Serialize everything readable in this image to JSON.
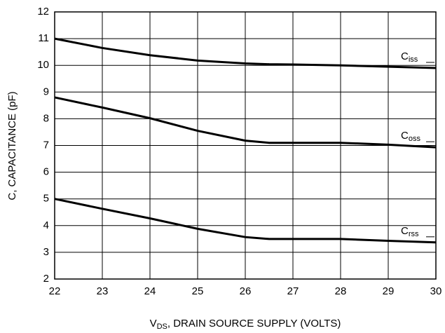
{
  "chart_data": {
    "type": "line",
    "y_label": "C, CAPACITANCE (pF)",
    "x_label": {
      "text": "V",
      "subscript": "DS",
      "after": ", DRAIN SOURCE SUPPLY (VOLTS)"
    },
    "x": [
      22,
      23,
      24,
      25,
      26,
      26.5,
      27,
      28,
      29,
      30
    ],
    "series": [
      {
        "name": "Ciss",
        "color": "#000000",
        "values": [
          11,
          10.65,
          10.38,
          10.18,
          10.07,
          10.04,
          10.03,
          10.0,
          9.95,
          9.9
        ]
      },
      {
        "name": "Coss",
        "color": "#000000",
        "values": [
          8.8,
          8.42,
          8.02,
          7.55,
          7.18,
          7.1,
          7.1,
          7.1,
          7.03,
          6.93
        ]
      },
      {
        "name": "Crss",
        "color": "#000000",
        "values": [
          5.0,
          4.63,
          4.27,
          3.88,
          3.57,
          3.5,
          3.5,
          3.5,
          3.43,
          3.37
        ]
      }
    ],
    "xlim": [
      22,
      30
    ],
    "ylim": [
      2,
      12
    ],
    "xticks": [
      22,
      23,
      24,
      25,
      26,
      27,
      28,
      29,
      30
    ],
    "yticks": [
      2,
      3,
      4,
      5,
      6,
      7,
      8,
      9,
      10,
      11,
      12
    ],
    "grid": true
  }
}
